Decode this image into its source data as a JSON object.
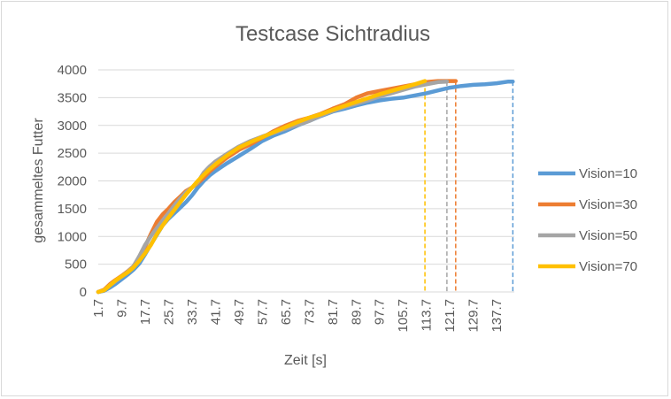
{
  "chart_data": {
    "type": "line",
    "title": "Testcase Sichtradius",
    "xlabel": "Zeit [s]",
    "ylabel": "gesammeltes Futter",
    "ylim": [
      0,
      4000
    ],
    "yticks": [
      0,
      500,
      1000,
      1500,
      2000,
      2500,
      3000,
      3500,
      4000
    ],
    "xlim": [
      1.7,
      143.7
    ],
    "xticks": [
      "1.7",
      "9.7",
      "17.7",
      "25.7",
      "33.7",
      "41.7",
      "49.7",
      "57.7",
      "65.7",
      "73.7",
      "81.7",
      "89.7",
      "97.7",
      "105.7",
      "113.7",
      "121.7",
      "129.7",
      "137.7"
    ],
    "grid": "horizontal",
    "legend_position": "right",
    "series": [
      {
        "name": "Vision=10",
        "color": "#5b9bd5",
        "x": [
          1.7,
          3.7,
          5.7,
          7.7,
          9.7,
          11.7,
          13.7,
          15.7,
          17.7,
          19.7,
          21.7,
          23.7,
          25.7,
          27.7,
          29.7,
          31.7,
          33.7,
          35.7,
          37.7,
          39.7,
          41.7,
          45.7,
          49.7,
          53.7,
          57.7,
          61.7,
          65.7,
          69.7,
          73.7,
          77.7,
          81.7,
          85.7,
          89.7,
          93.7,
          97.7,
          101.7,
          105.7,
          109.7,
          113.7,
          117.7,
          121.7,
          125.7,
          129.7,
          133.7,
          137.7,
          141.7,
          143.2
        ],
        "y": [
          0,
          20,
          80,
          150,
          230,
          310,
          400,
          510,
          680,
          860,
          1030,
          1200,
          1320,
          1420,
          1520,
          1620,
          1740,
          1880,
          2000,
          2100,
          2180,
          2320,
          2450,
          2580,
          2720,
          2820,
          2900,
          3000,
          3080,
          3170,
          3250,
          3300,
          3360,
          3410,
          3450,
          3480,
          3500,
          3540,
          3580,
          3630,
          3680,
          3710,
          3730,
          3740,
          3760,
          3790,
          3790
        ],
        "end_marker": 143.2
      },
      {
        "name": "Vision=30",
        "color": "#ed7d31",
        "x": [
          1.7,
          3.7,
          5.7,
          7.7,
          9.7,
          11.7,
          13.7,
          15.7,
          17.7,
          19.7,
          21.7,
          23.7,
          25.7,
          27.7,
          29.7,
          31.7,
          33.7,
          35.7,
          37.7,
          39.7,
          41.7,
          45.7,
          49.7,
          53.7,
          57.7,
          61.7,
          65.7,
          69.7,
          73.7,
          77.7,
          81.7,
          85.7,
          89.7,
          93.7,
          97.7,
          101.7,
          105.7,
          109.7,
          113.7,
          117.7,
          121.7,
          123.7
        ],
        "y": [
          0,
          40,
          140,
          220,
          290,
          370,
          460,
          620,
          820,
          1050,
          1260,
          1400,
          1500,
          1620,
          1720,
          1820,
          1880,
          1960,
          2060,
          2170,
          2260,
          2420,
          2560,
          2660,
          2780,
          2900,
          3000,
          3080,
          3140,
          3210,
          3300,
          3380,
          3500,
          3580,
          3620,
          3660,
          3700,
          3740,
          3780,
          3800,
          3800,
          3800
        ],
        "end_marker": 123.7
      },
      {
        "name": "Vision=50",
        "color": "#a5a5a5",
        "x": [
          1.7,
          3.7,
          5.7,
          7.7,
          9.7,
          11.7,
          13.7,
          15.7,
          17.7,
          19.7,
          21.7,
          23.7,
          25.7,
          27.7,
          29.7,
          31.7,
          33.7,
          35.7,
          37.7,
          39.7,
          41.7,
          45.7,
          49.7,
          53.7,
          57.7,
          61.7,
          65.7,
          69.7,
          73.7,
          77.7,
          81.7,
          85.7,
          89.7,
          93.7,
          97.7,
          101.7,
          105.7,
          109.7,
          113.7,
          117.7,
          120.7
        ],
        "y": [
          0,
          30,
          120,
          200,
          280,
          360,
          460,
          640,
          850,
          1010,
          1150,
          1290,
          1420,
          1560,
          1690,
          1800,
          1880,
          1980,
          2150,
          2260,
          2350,
          2490,
          2620,
          2720,
          2800,
          2870,
          2940,
          3010,
          3080,
          3180,
          3260,
          3330,
          3390,
          3450,
          3520,
          3580,
          3640,
          3700,
          3740,
          3780,
          3790
        ],
        "end_marker": 120.7
      },
      {
        "name": "Vision=70",
        "color": "#ffc000",
        "x": [
          1.7,
          3.7,
          5.7,
          7.7,
          9.7,
          11.7,
          13.7,
          15.7,
          17.7,
          19.7,
          21.7,
          23.7,
          25.7,
          27.7,
          29.7,
          31.7,
          33.7,
          35.7,
          37.7,
          39.7,
          41.7,
          45.7,
          49.7,
          53.7,
          57.7,
          61.7,
          65.7,
          69.7,
          73.7,
          77.7,
          81.7,
          85.7,
          89.7,
          93.7,
          97.7,
          101.7,
          105.7,
          109.7,
          113.2
        ],
        "y": [
          0,
          30,
          120,
          210,
          280,
          350,
          440,
          560,
          700,
          850,
          1040,
          1200,
          1340,
          1480,
          1620,
          1760,
          1880,
          2000,
          2110,
          2210,
          2300,
          2460,
          2600,
          2700,
          2790,
          2880,
          2970,
          3060,
          3140,
          3200,
          3280,
          3350,
          3420,
          3490,
          3560,
          3620,
          3680,
          3740,
          3800
        ],
        "end_marker": 113.2
      }
    ]
  }
}
